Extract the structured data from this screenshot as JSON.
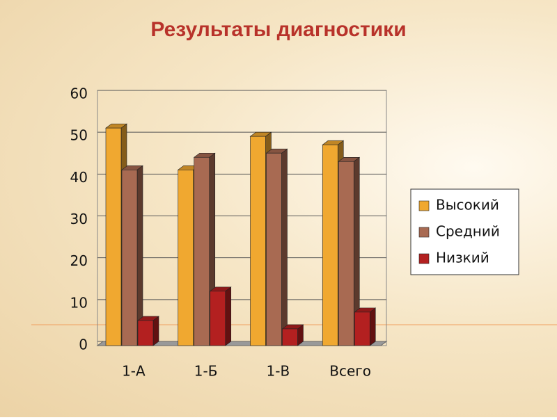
{
  "chart_data": {
    "type": "bar3d",
    "title": "Результаты диагностики",
    "categories": [
      "1-А",
      "1-Б",
      "1-В",
      "Всего"
    ],
    "series": [
      {
        "name": "Высокий",
        "color": "#f0a830",
        "values": [
          52,
          42,
          50,
          48
        ]
      },
      {
        "name": "Средний",
        "color": "#a86a52",
        "values": [
          42,
          45,
          46,
          44
        ]
      },
      {
        "name": "Низкий",
        "color": "#b32020",
        "values": [
          6,
          13,
          4,
          8
        ]
      }
    ],
    "ylim": [
      0,
      60
    ],
    "yticks": [
      0,
      10,
      20,
      30,
      40,
      50,
      60
    ],
    "grid": true,
    "legend": "right"
  }
}
